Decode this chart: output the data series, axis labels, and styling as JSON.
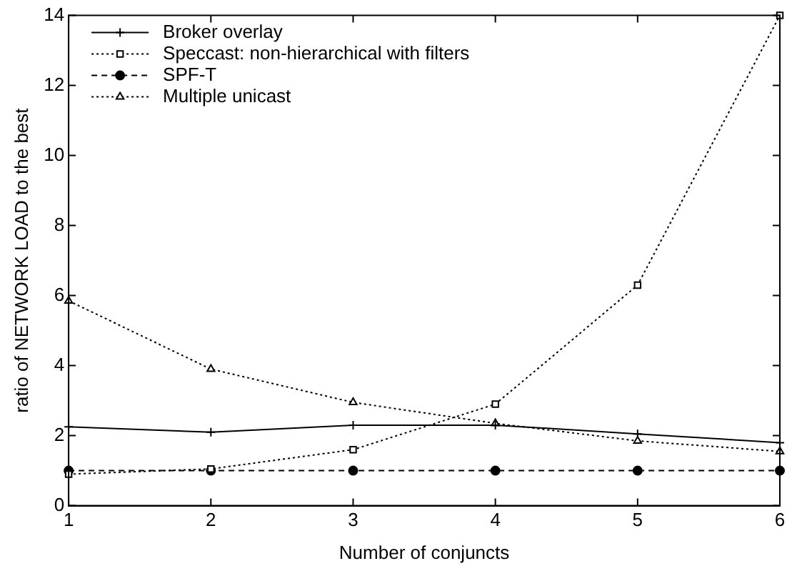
{
  "chart_data": {
    "type": "line",
    "xlabel": "Number of conjuncts",
    "ylabel": "ratio of NETWORK LOAD to the best",
    "x": [
      1,
      2,
      3,
      4,
      5,
      6
    ],
    "series": [
      {
        "name": "Broker overlay",
        "color": "#000000",
        "marker": "cross",
        "line_style": "solid",
        "values": [
          2.25,
          2.1,
          2.3,
          2.3,
          2.05,
          1.8
        ]
      },
      {
        "name": "Speccast: non-hierarchical with filters",
        "color": "#000000",
        "marker": "square",
        "line_style": "dotted",
        "values": [
          0.9,
          1.05,
          1.6,
          2.9,
          6.3,
          14
        ]
      },
      {
        "name": "SPF-T",
        "color": "#000000",
        "marker": "circle",
        "line_style": "dashed",
        "values": [
          1,
          1,
          1,
          1,
          1,
          1
        ]
      },
      {
        "name": "Multiple unicast",
        "color": "#000000",
        "marker": "triangle",
        "line_style": "dotted",
        "values": [
          5.85,
          3.9,
          2.95,
          2.35,
          1.85,
          1.55
        ]
      }
    ],
    "xlim": [
      1,
      6
    ],
    "xticks": [
      1,
      2,
      3,
      4,
      5,
      6
    ],
    "ylim": [
      0,
      14
    ],
    "yticks": [
      0,
      2,
      4,
      6,
      8,
      10,
      12,
      14
    ],
    "grid": false,
    "legend": "top left"
  }
}
